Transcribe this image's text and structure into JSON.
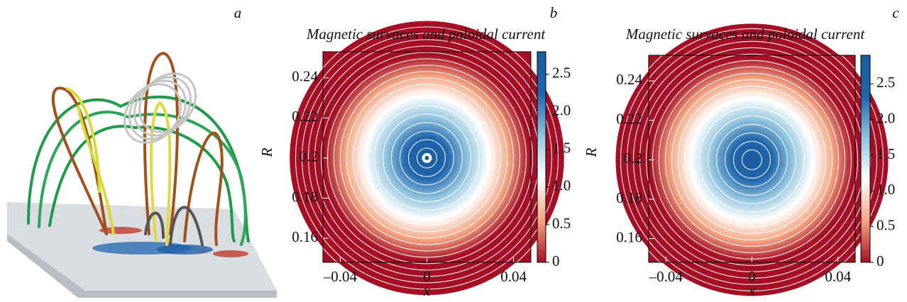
{
  "figure": {
    "panel_label": "a"
  },
  "chart_data": [
    {
      "type": "contour",
      "panel_label": "b",
      "title": "Magnetic survaces and poloidal current",
      "xlabel": "x",
      "ylabel": "R",
      "xlim": [
        -0.048,
        0.048
      ],
      "ylim": [
        0.148,
        0.253
      ],
      "xticks": [
        {
          "value": -0.04,
          "label": "–0.04"
        },
        0,
        0.04
      ],
      "yticks": [
        0.16,
        0.18,
        0.2,
        0.22,
        0.24
      ],
      "clim": [
        0,
        2.8
      ],
      "cticks": [
        0,
        0.5,
        {
          "value": 1,
          "label": "1.0"
        },
        1.5,
        {
          "value": 2,
          "label": "2.0"
        },
        2.5
      ],
      "colormap": [
        "#a50f26",
        "#f4a582",
        "#ffffff",
        "#92c5de",
        "#2166ac",
        "#1b5a9c"
      ]
    },
    {
      "type": "contour",
      "panel_label": "c",
      "title": "Magnetic survaces and poloidal current",
      "xlabel": "x",
      "ylabel": "R",
      "xlim": [
        -0.048,
        0.048
      ],
      "ylim": [
        0.148,
        0.253
      ],
      "xticks": [
        {
          "value": -0.04,
          "label": "–0.04"
        },
        0,
        0.04
      ],
      "yticks": [
        0.16,
        0.18,
        0.2,
        0.22,
        0.24
      ],
      "clim": [
        0,
        2.9
      ],
      "cticks": [
        0,
        0.5,
        {
          "value": 1,
          "label": "1.0"
        },
        1.5,
        {
          "value": 2,
          "label": "2.0"
        },
        2.5
      ],
      "colormap": [
        "#a50f26",
        "#f4a582",
        "#ffffff",
        "#92c5de",
        "#2166ac",
        "#1b5a9c"
      ]
    }
  ]
}
